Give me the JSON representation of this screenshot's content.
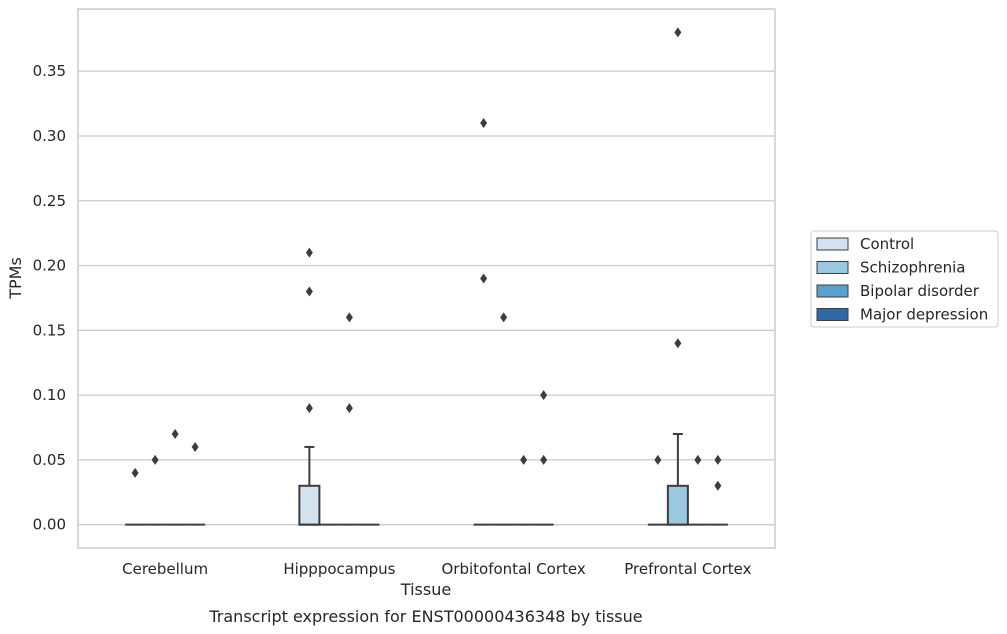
{
  "chart_data": {
    "type": "box",
    "xlabel": "Tissue",
    "ylabel": "TPMs",
    "caption": "Transcript expression for ENST00000436348 by tissue",
    "ylim": [
      -0.018,
      0.398
    ],
    "yticks": [
      "0.00",
      "0.05",
      "0.10",
      "0.15",
      "0.20",
      "0.25",
      "0.30",
      "0.35"
    ],
    "yticks_values": [
      0,
      0.05,
      0.1,
      0.15,
      0.2,
      0.25,
      0.3,
      0.35
    ],
    "grid": "horizontal",
    "legend_position": "right",
    "categories": [
      "Cerebellum",
      "Hipppocampus",
      "Orbitofontal Cortex",
      "Prefrontal Cortex"
    ],
    "series": [
      {
        "name": "Control",
        "color": "#d2e2f1"
      },
      {
        "name": "Schizophrenia",
        "color": "#9ac8e0"
      },
      {
        "name": "Bipolar disorder",
        "color": "#5a9fcd"
      },
      {
        "name": "Major depression",
        "color": "#2d6aa9"
      }
    ],
    "boxes": [
      {
        "category": 0,
        "series": 0,
        "q1": 0,
        "median": 0,
        "q3": 0,
        "whislo": 0,
        "whishi": 0,
        "fliers": [
          0.04
        ]
      },
      {
        "category": 0,
        "series": 1,
        "q1": 0,
        "median": 0,
        "q3": 0,
        "whislo": 0,
        "whishi": 0,
        "fliers": [
          0.05
        ]
      },
      {
        "category": 0,
        "series": 2,
        "q1": 0,
        "median": 0,
        "q3": 0,
        "whislo": 0,
        "whishi": 0,
        "fliers": [
          0.07
        ]
      },
      {
        "category": 0,
        "series": 3,
        "q1": 0,
        "median": 0,
        "q3": 0,
        "whislo": 0,
        "whishi": 0,
        "fliers": [
          0.06
        ]
      },
      {
        "category": 1,
        "series": 0,
        "q1": 0,
        "median": 0,
        "q3": 0.03,
        "whislo": 0,
        "whishi": 0.06,
        "fliers": [
          0.09,
          0.18,
          0.21
        ]
      },
      {
        "category": 1,
        "series": 1,
        "q1": 0,
        "median": 0,
        "q3": 0,
        "whislo": 0,
        "whishi": 0,
        "fliers": []
      },
      {
        "category": 1,
        "series": 2,
        "q1": 0,
        "median": 0,
        "q3": 0,
        "whislo": 0,
        "whishi": 0,
        "fliers": [
          0.09,
          0.16
        ]
      },
      {
        "category": 1,
        "series": 3,
        "q1": 0,
        "median": 0,
        "q3": 0,
        "whislo": 0,
        "whishi": 0,
        "fliers": []
      },
      {
        "category": 2,
        "series": 0,
        "q1": 0,
        "median": 0,
        "q3": 0,
        "whislo": 0,
        "whishi": 0,
        "fliers": [
          0.19,
          0.31
        ]
      },
      {
        "category": 2,
        "series": 1,
        "q1": 0,
        "median": 0,
        "q3": 0,
        "whislo": 0,
        "whishi": 0,
        "fliers": [
          0.16
        ]
      },
      {
        "category": 2,
        "series": 2,
        "q1": 0,
        "median": 0,
        "q3": 0,
        "whislo": 0,
        "whishi": 0,
        "fliers": [
          0.05
        ]
      },
      {
        "category": 2,
        "series": 3,
        "q1": 0,
        "median": 0,
        "q3": 0,
        "whislo": 0,
        "whishi": 0,
        "fliers": [
          0.05,
          0.1
        ]
      },
      {
        "category": 3,
        "series": 0,
        "q1": 0,
        "median": 0,
        "q3": 0,
        "whislo": 0,
        "whishi": 0,
        "fliers": [
          0.05
        ]
      },
      {
        "category": 3,
        "series": 1,
        "q1": 0,
        "median": 0,
        "q3": 0.03,
        "whislo": 0,
        "whishi": 0.07,
        "fliers": [
          0.14,
          0.38
        ]
      },
      {
        "category": 3,
        "series": 2,
        "q1": 0,
        "median": 0,
        "q3": 0,
        "whislo": 0,
        "whishi": 0,
        "fliers": [
          0.05
        ]
      },
      {
        "category": 3,
        "series": 3,
        "q1": 0,
        "median": 0,
        "q3": 0,
        "whislo": 0,
        "whishi": 0,
        "fliers": [
          0.03,
          0.05
        ]
      }
    ]
  }
}
